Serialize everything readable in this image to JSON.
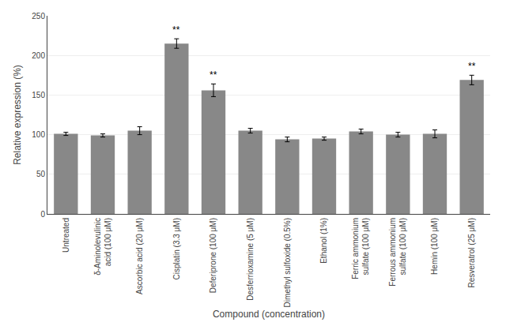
{
  "chart_data": {
    "type": "bar",
    "categories": [
      "Untreated",
      "δ-Aminolevulinic\nacid (100 μM)",
      "Ascorbic acid (20 μM)",
      "Cisplatin (3.3 μM)",
      "Deferiprone (100 μM)",
      "Desferrioxamine (5 μM)",
      "Dimethyl sulfoxide (0.5%)",
      "Ethanol (1%)",
      "Ferric ammonium\nsulfate (100 μM)",
      "Ferrous ammonium\nsulfate (100 μM)",
      "Hemin (100 μM)",
      "Resveratrol (25 μM)"
    ],
    "values": [
      101,
      99,
      105,
      215,
      156,
      105,
      94,
      95,
      104,
      100,
      101,
      169
    ],
    "errors": [
      2,
      2,
      5,
      6,
      8,
      3,
      3,
      2,
      3,
      3,
      5,
      6
    ],
    "annotations": [
      {
        "text": "**",
        "category": "Cisplatin (3.3 μM)"
      },
      {
        "text": "**",
        "category": "Deferiprone (100 μM)"
      },
      {
        "text": "**",
        "category": "Resveratrol (25 μM)"
      }
    ],
    "color": "#888888",
    "xlabel": "Compound (concentration)",
    "ylabel": "Relative expression (%)",
    "ylim": [
      0,
      250
    ],
    "yticks": [
      0,
      50,
      100,
      150,
      200,
      250
    ],
    "grid": true
  }
}
